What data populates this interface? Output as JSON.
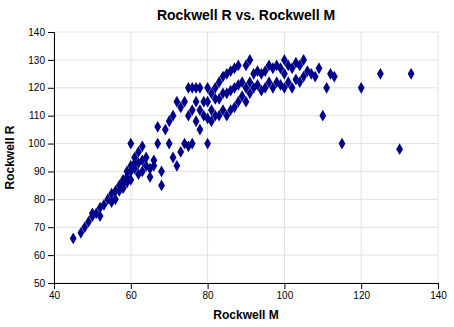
{
  "chart_data": {
    "type": "scatter",
    "title": "Rockwell R vs. Rockwell M",
    "xlabel": "Rockwell M",
    "ylabel": "Rockwell R",
    "x": [
      45,
      47,
      48,
      49,
      50,
      50,
      51,
      52,
      52,
      53,
      54,
      55,
      55,
      56,
      56,
      57,
      57,
      58,
      58,
      58,
      59,
      59,
      59,
      60,
      60,
      60,
      60,
      61,
      61,
      61,
      62,
      62,
      62,
      63,
      63,
      63,
      64,
      64,
      65,
      65,
      66,
      66,
      67,
      67,
      68,
      68,
      69,
      70,
      70,
      71,
      71,
      72,
      72,
      73,
      73,
      74,
      74,
      75,
      75,
      75,
      76,
      76,
      76,
      77,
      77,
      77,
      78,
      78,
      78,
      79,
      79,
      80,
      80,
      80,
      80,
      81,
      81,
      81,
      82,
      82,
      82,
      83,
      83,
      83,
      84,
      84,
      84,
      85,
      85,
      85,
      86,
      86,
      86,
      87,
      87,
      87,
      88,
      88,
      88,
      89,
      89,
      90,
      90,
      90,
      91,
      91,
      91,
      92,
      92,
      93,
      93,
      94,
      94,
      95,
      95,
      96,
      96,
      97,
      97,
      98,
      98,
      99,
      99,
      100,
      100,
      100,
      101,
      101,
      102,
      102,
      103,
      103,
      104,
      104,
      105,
      105,
      106,
      107,
      108,
      109,
      110,
      111,
      112,
      113,
      115,
      120,
      125,
      130,
      133
    ],
    "values": [
      66,
      68,
      70,
      72,
      74,
      75,
      75,
      74,
      77,
      78,
      80,
      79,
      82,
      80,
      83,
      83,
      85,
      84,
      86,
      87,
      86,
      88,
      90,
      87,
      90,
      92,
      100,
      91,
      93,
      95,
      89,
      93,
      97,
      90,
      94,
      99,
      92,
      95,
      88,
      91,
      92,
      94,
      100,
      106,
      85,
      90,
      105,
      100,
      108,
      95,
      110,
      92,
      115,
      97,
      113,
      100,
      115,
      99,
      110,
      120,
      100,
      112,
      120,
      108,
      115,
      120,
      105,
      112,
      120,
      110,
      115,
      100,
      109,
      115,
      120,
      108,
      112,
      118,
      110,
      116,
      120,
      110,
      116,
      122,
      112,
      118,
      124,
      110,
      118,
      125,
      112,
      119,
      126,
      113,
      120,
      127,
      115,
      121,
      128,
      117,
      122,
      115,
      120,
      128,
      118,
      122,
      130,
      120,
      125,
      121,
      126,
      119,
      125,
      120,
      126,
      122,
      128,
      120,
      127,
      122,
      128,
      121,
      127,
      120,
      125,
      130,
      122,
      128,
      120,
      127,
      123,
      129,
      122,
      128,
      124,
      130,
      126,
      125,
      124,
      127,
      110,
      120,
      125,
      124,
      100,
      120,
      125,
      98,
      125
    ],
    "color": "#00008B",
    "marker": "diamond",
    "xlim": [
      40,
      140
    ],
    "ylim": [
      50,
      140
    ],
    "xticks": [
      40,
      60,
      80,
      100,
      120,
      140
    ],
    "yticks": [
      50,
      60,
      70,
      80,
      90,
      100,
      110,
      120,
      130,
      140
    ],
    "grid": true
  }
}
